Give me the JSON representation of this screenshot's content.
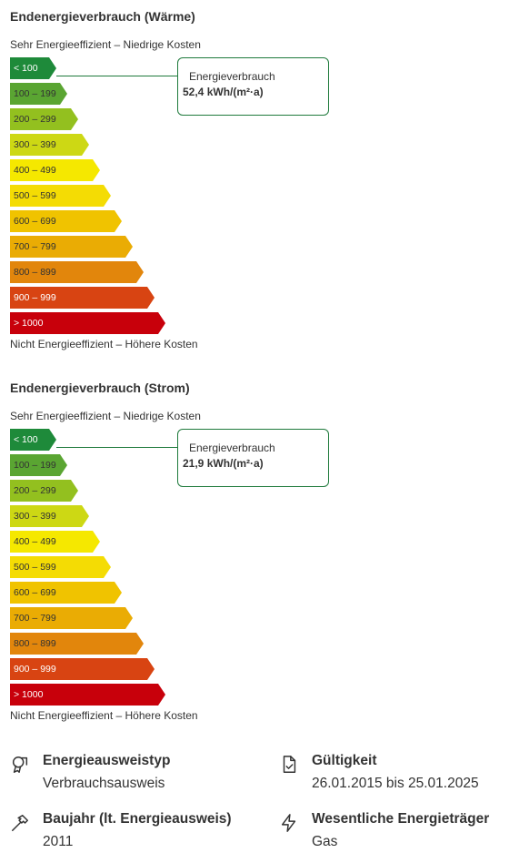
{
  "sections": [
    {
      "title": "Endenergieverbrauch (Wärme)",
      "top_label": "Sehr Energieeffizient – Niedrige Kosten",
      "bottom_label": "Nicht Energieeffizient – Höhere Kosten",
      "scale": [
        {
          "label": "< 100",
          "color": "#1e8a3a",
          "text_color": "#ffffff"
        },
        {
          "label": "100 – 199",
          "color": "#5aa532",
          "text_color": "#333333"
        },
        {
          "label": "200 – 299",
          "color": "#93c01f",
          "text_color": "#333333"
        },
        {
          "label": "300 – 399",
          "color": "#cdd814",
          "text_color": "#333333"
        },
        {
          "label": "400 – 499",
          "color": "#f5e800",
          "text_color": "#333333"
        },
        {
          "label": "500 – 599",
          "color": "#f4dc04",
          "text_color": "#333333"
        },
        {
          "label": "600 – 699",
          "color": "#f0c300",
          "text_color": "#333333"
        },
        {
          "label": "700 – 799",
          "color": "#eaac04",
          "text_color": "#333333"
        },
        {
          "label": "800 – 899",
          "color": "#e2860c",
          "text_color": "#333333"
        },
        {
          "label": "900 – 999",
          "color": "#d84412",
          "text_color": "#ffffff"
        },
        {
          "label": "> 1000",
          "color": "#c8000b",
          "text_color": "#ffffff"
        }
      ],
      "callout": {
        "label": "Energieverbrauch",
        "value": "52,4 kWh/(m²·a)",
        "border_color": "#1f7a3c"
      }
    },
    {
      "title": "Endenergieverbrauch (Strom)",
      "top_label": "Sehr Energieeffizient – Niedrige Kosten",
      "bottom_label": "Nicht Energieeffizient – Höhere Kosten",
      "scale": [
        {
          "label": "< 100",
          "color": "#1e8a3a",
          "text_color": "#ffffff"
        },
        {
          "label": "100 – 199",
          "color": "#5aa532",
          "text_color": "#333333"
        },
        {
          "label": "200 – 299",
          "color": "#93c01f",
          "text_color": "#333333"
        },
        {
          "label": "300 – 399",
          "color": "#cdd814",
          "text_color": "#333333"
        },
        {
          "label": "400 – 499",
          "color": "#f5e800",
          "text_color": "#333333"
        },
        {
          "label": "500 – 599",
          "color": "#f4dc04",
          "text_color": "#333333"
        },
        {
          "label": "600 – 699",
          "color": "#f0c300",
          "text_color": "#333333"
        },
        {
          "label": "700 – 799",
          "color": "#eaac04",
          "text_color": "#333333"
        },
        {
          "label": "800 – 899",
          "color": "#e2860c",
          "text_color": "#333333"
        },
        {
          "label": "900 – 999",
          "color": "#d84412",
          "text_color": "#ffffff"
        },
        {
          "label": "> 1000",
          "color": "#c8000b",
          "text_color": "#ffffff"
        }
      ],
      "callout": {
        "label": "Energieverbrauch",
        "value": "21,9 kWh/(m²·a)",
        "border_color": "#1f7a3c"
      }
    }
  ],
  "details": [
    {
      "icon": "certificate-badge-icon",
      "label": "Energieausweistyp",
      "value": "Verbrauchsausweis"
    },
    {
      "icon": "document-check-icon",
      "label": "Gültigkeit",
      "value": "26.01.2015 bis 25.01.2025"
    },
    {
      "icon": "hammer-icon",
      "label": "Baujahr (lt. Energieausweis)",
      "value": "2011"
    },
    {
      "icon": "lightning-bolt-icon",
      "label": "Wesentliche Energieträger",
      "value": "Gas"
    }
  ]
}
